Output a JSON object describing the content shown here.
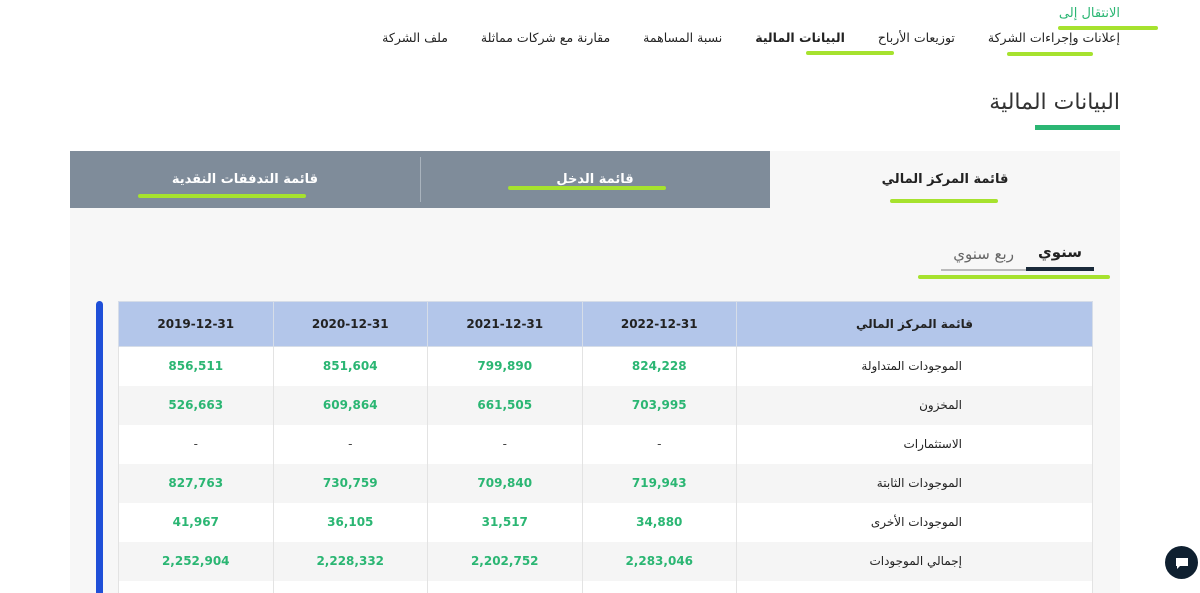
{
  "nav": {
    "label": "الانتقال إلى",
    "items": [
      {
        "label": "إعلانات وإجراءات الشركة",
        "active": false
      },
      {
        "label": "توزيعات الأرباح",
        "active": false
      },
      {
        "label": "البيانات المالية",
        "active": true
      },
      {
        "label": "نسبة المساهمة",
        "active": false
      },
      {
        "label": "مقارنة مع شركات مماثلة",
        "active": false
      },
      {
        "label": "ملف الشركة",
        "active": false
      }
    ]
  },
  "page": {
    "title": "البيانات المالية"
  },
  "tabs": {
    "balance": "قائمة المركز المالي",
    "income": "قائمة الدخل",
    "cashflow": "قائمة التدفقات النقدية"
  },
  "period": {
    "annual": "سنوي",
    "quarterly": "ربع سنوي"
  },
  "table": {
    "headers": [
      "قائمة المركز المالي",
      "2022-12-31",
      "2021-12-31",
      "2020-12-31",
      "2019-12-31"
    ],
    "rows": [
      {
        "label": "الموجودات المتداولة",
        "values": [
          "824,228",
          "799,890",
          "851,604",
          "856,511"
        ]
      },
      {
        "label": "المخزون",
        "values": [
          "703,995",
          "661,505",
          "609,864",
          "526,663"
        ]
      },
      {
        "label": "الاستثمارات",
        "values": [
          "-",
          "-",
          "-",
          "-"
        ]
      },
      {
        "label": "الموجودات الثابتة",
        "values": [
          "719,943",
          "709,840",
          "730,759",
          "827,763"
        ]
      },
      {
        "label": "الموجودات الأخرى",
        "values": [
          "34,880",
          "31,517",
          "36,105",
          "41,967"
        ]
      },
      {
        "label": "إجمالي الموجودات",
        "values": [
          "2,283,046",
          "2,202,752",
          "2,228,332",
          "2,252,904"
        ]
      },
      {
        "label": "",
        "values": [
          "",
          "",
          "",
          ""
        ]
      }
    ]
  },
  "colors": {
    "accent": "#2bb673",
    "highlight": "#a6e22e",
    "tab_inactive": "#7f8c9a",
    "table_header": "#b3c6ea"
  },
  "icons": {
    "chat": "chat-bubble-icon"
  }
}
